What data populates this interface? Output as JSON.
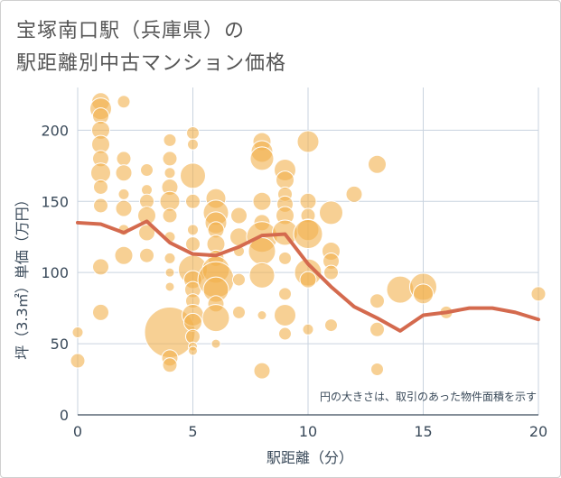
{
  "title_line1": "宝塚南口駅（兵庫県）の",
  "title_line2": "駅距離別中古マンション価格",
  "chart_data": {
    "type": "scatter",
    "xlabel": "駅距離（分）",
    "ylabel": "坪（3.3㎡）単価（万円）",
    "annotation": "円の大きさは、取引のあった物件面積を示す",
    "xlim": [
      0,
      20
    ],
    "ylim": [
      0,
      230
    ],
    "xticks": [
      0,
      5,
      10,
      15,
      20
    ],
    "yticks": [
      0,
      50,
      100,
      150,
      200
    ],
    "grid": true,
    "colors": {
      "bubble": "#f2b04d",
      "line": "#d46a4e",
      "grid": "#c9d3df"
    },
    "bubbles": [
      {
        "x": 1,
        "y": 220,
        "s": 10
      },
      {
        "x": 1,
        "y": 215,
        "s": 12
      },
      {
        "x": 1,
        "y": 210,
        "s": 9
      },
      {
        "x": 1,
        "y": 200,
        "s": 10
      },
      {
        "x": 1,
        "y": 190,
        "s": 10
      },
      {
        "x": 1,
        "y": 180,
        "s": 9
      },
      {
        "x": 1,
        "y": 170,
        "s": 11
      },
      {
        "x": 1,
        "y": 160,
        "s": 8
      },
      {
        "x": 1,
        "y": 147,
        "s": 8
      },
      {
        "x": 1,
        "y": 104,
        "s": 9
      },
      {
        "x": 1,
        "y": 72,
        "s": 9
      },
      {
        "x": 2,
        "y": 220,
        "s": 7
      },
      {
        "x": 2,
        "y": 180,
        "s": 8
      },
      {
        "x": 2,
        "y": 170,
        "s": 9
      },
      {
        "x": 2,
        "y": 155,
        "s": 6
      },
      {
        "x": 2,
        "y": 145,
        "s": 9
      },
      {
        "x": 2,
        "y": 130,
        "s": 6
      },
      {
        "x": 2,
        "y": 112,
        "s": 10
      },
      {
        "x": 3,
        "y": 172,
        "s": 7
      },
      {
        "x": 3,
        "y": 158,
        "s": 6
      },
      {
        "x": 3,
        "y": 150,
        "s": 8
      },
      {
        "x": 3,
        "y": 140,
        "s": 10
      },
      {
        "x": 3,
        "y": 128,
        "s": 9
      },
      {
        "x": 3,
        "y": 112,
        "s": 8
      },
      {
        "x": 4,
        "y": 193,
        "s": 7
      },
      {
        "x": 4,
        "y": 180,
        "s": 8
      },
      {
        "x": 4,
        "y": 170,
        "s": 6
      },
      {
        "x": 4,
        "y": 160,
        "s": 9
      },
      {
        "x": 4,
        "y": 150,
        "s": 11
      },
      {
        "x": 4,
        "y": 140,
        "s": 8
      },
      {
        "x": 4,
        "y": 125,
        "s": 6
      },
      {
        "x": 4,
        "y": 110,
        "s": 6
      },
      {
        "x": 4,
        "y": 100,
        "s": 5
      },
      {
        "x": 4,
        "y": 90,
        "s": 5
      },
      {
        "x": 4,
        "y": 58,
        "s": 28
      },
      {
        "x": 4,
        "y": 40,
        "s": 9
      },
      {
        "x": 4,
        "y": 35,
        "s": 8
      },
      {
        "x": 5,
        "y": 198,
        "s": 7
      },
      {
        "x": 5,
        "y": 190,
        "s": 6
      },
      {
        "x": 5,
        "y": 168,
        "s": 14
      },
      {
        "x": 5,
        "y": 150,
        "s": 8
      },
      {
        "x": 5,
        "y": 130,
        "s": 6
      },
      {
        "x": 5,
        "y": 120,
        "s": 8
      },
      {
        "x": 5,
        "y": 102,
        "s": 16
      },
      {
        "x": 5,
        "y": 95,
        "s": 10
      },
      {
        "x": 5,
        "y": 88,
        "s": 9
      },
      {
        "x": 5,
        "y": 80,
        "s": 8
      },
      {
        "x": 5,
        "y": 70,
        "s": 12
      },
      {
        "x": 5,
        "y": 65,
        "s": 10
      },
      {
        "x": 5,
        "y": 55,
        "s": 8
      },
      {
        "x": 5,
        "y": 48,
        "s": 5
      },
      {
        "x": 5,
        "y": 45,
        "s": 5
      },
      {
        "x": 6,
        "y": 152,
        "s": 11
      },
      {
        "x": 6,
        "y": 142,
        "s": 14
      },
      {
        "x": 6,
        "y": 135,
        "s": 12
      },
      {
        "x": 6,
        "y": 130,
        "s": 9
      },
      {
        "x": 6,
        "y": 120,
        "s": 10
      },
      {
        "x": 6,
        "y": 110,
        "s": 9
      },
      {
        "x": 6,
        "y": 102,
        "s": 15
      },
      {
        "x": 6,
        "y": 95,
        "s": 20
      },
      {
        "x": 6,
        "y": 88,
        "s": 14
      },
      {
        "x": 6,
        "y": 78,
        "s": 9
      },
      {
        "x": 6,
        "y": 68,
        "s": 15
      },
      {
        "x": 6,
        "y": 50,
        "s": 5
      },
      {
        "x": 7,
        "y": 140,
        "s": 9
      },
      {
        "x": 7,
        "y": 125,
        "s": 10
      },
      {
        "x": 7,
        "y": 115,
        "s": 6
      },
      {
        "x": 7,
        "y": 95,
        "s": 7
      },
      {
        "x": 7,
        "y": 72,
        "s": 7
      },
      {
        "x": 8,
        "y": 192,
        "s": 10
      },
      {
        "x": 8,
        "y": 185,
        "s": 12
      },
      {
        "x": 8,
        "y": 180,
        "s": 13
      },
      {
        "x": 8,
        "y": 150,
        "s": 10
      },
      {
        "x": 8,
        "y": 135,
        "s": 9
      },
      {
        "x": 8,
        "y": 125,
        "s": 17
      },
      {
        "x": 8,
        "y": 115,
        "s": 15
      },
      {
        "x": 8,
        "y": 98,
        "s": 14
      },
      {
        "x": 8,
        "y": 70,
        "s": 5
      },
      {
        "x": 8,
        "y": 31,
        "s": 9
      },
      {
        "x": 9,
        "y": 172,
        "s": 12
      },
      {
        "x": 9,
        "y": 165,
        "s": 10
      },
      {
        "x": 9,
        "y": 155,
        "s": 8
      },
      {
        "x": 9,
        "y": 148,
        "s": 9
      },
      {
        "x": 9,
        "y": 140,
        "s": 10
      },
      {
        "x": 9,
        "y": 128,
        "s": 14
      },
      {
        "x": 9,
        "y": 110,
        "s": 7
      },
      {
        "x": 9,
        "y": 85,
        "s": 7
      },
      {
        "x": 9,
        "y": 70,
        "s": 12
      },
      {
        "x": 9,
        "y": 57,
        "s": 7
      },
      {
        "x": 10,
        "y": 192,
        "s": 12
      },
      {
        "x": 10,
        "y": 150,
        "s": 9
      },
      {
        "x": 10,
        "y": 140,
        "s": 8
      },
      {
        "x": 10,
        "y": 130,
        "s": 12
      },
      {
        "x": 10,
        "y": 127,
        "s": 16
      },
      {
        "x": 10,
        "y": 100,
        "s": 15
      },
      {
        "x": 10,
        "y": 95,
        "s": 9
      },
      {
        "x": 10,
        "y": 60,
        "s": 6
      },
      {
        "x": 11,
        "y": 142,
        "s": 13
      },
      {
        "x": 11,
        "y": 115,
        "s": 10
      },
      {
        "x": 11,
        "y": 108,
        "s": 9
      },
      {
        "x": 11,
        "y": 100,
        "s": 8
      },
      {
        "x": 11,
        "y": 63,
        "s": 7
      },
      {
        "x": 12,
        "y": 155,
        "s": 9
      },
      {
        "x": 13,
        "y": 176,
        "s": 10
      },
      {
        "x": 13,
        "y": 80,
        "s": 8
      },
      {
        "x": 13,
        "y": 60,
        "s": 8
      },
      {
        "x": 13,
        "y": 32,
        "s": 7
      },
      {
        "x": 14,
        "y": 88,
        "s": 15
      },
      {
        "x": 15,
        "y": 90,
        "s": 15
      },
      {
        "x": 15,
        "y": 85,
        "s": 11
      },
      {
        "x": 16,
        "y": 72,
        "s": 7
      },
      {
        "x": 20,
        "y": 85,
        "s": 8
      },
      {
        "x": 0,
        "y": 58,
        "s": 6
      },
      {
        "x": 0,
        "y": 38,
        "s": 8
      }
    ],
    "series": [
      {
        "x": [
          0,
          1,
          2,
          3,
          4,
          5,
          6,
          7,
          8,
          9,
          10,
          11,
          12,
          13,
          14,
          15,
          16,
          17,
          18,
          19,
          20
        ],
        "y": [
          135,
          134,
          128,
          136,
          121,
          113,
          112,
          118,
          126,
          127,
          106,
          90,
          76,
          68,
          59,
          70,
          72,
          75,
          75,
          72,
          67
        ]
      }
    ]
  }
}
